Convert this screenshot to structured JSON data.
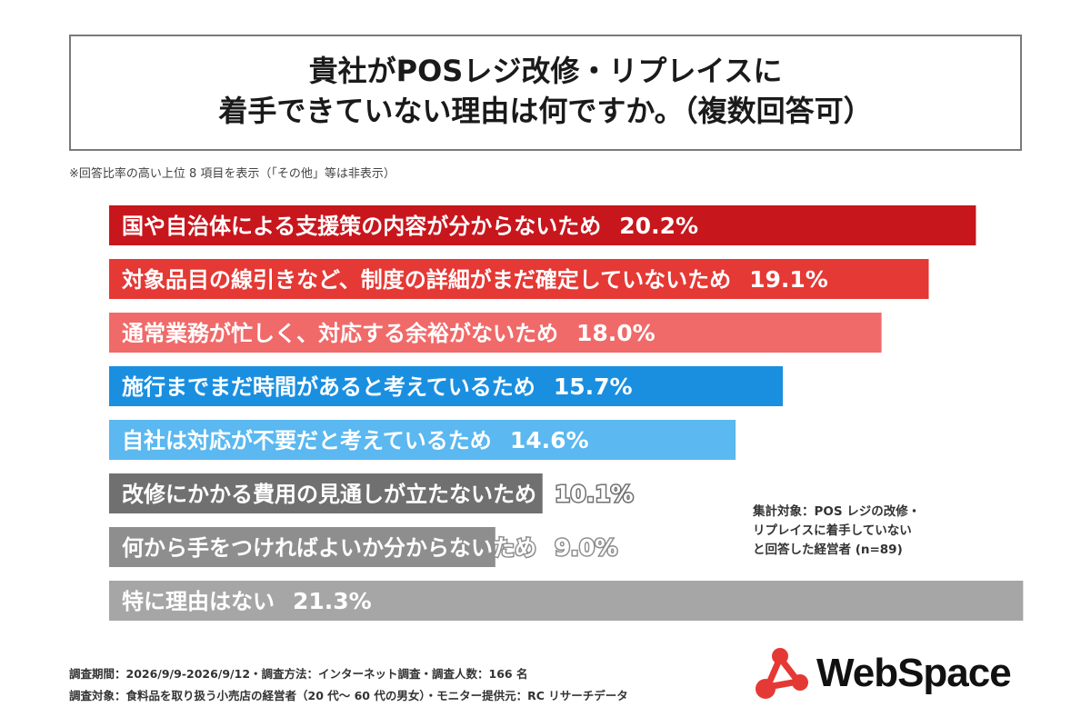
{
  "title": {
    "line1": "貴社がPOSレジ改修・リプレイスに",
    "line2": "着手できていない理由は何ですか。（複数回答可）"
  },
  "note": "※回答比率の高い上位 8 項目を表示（「その他」等は非表示）",
  "sample_note": [
    "集計対象：POS レジの改修・",
    "リプレイスに着手していない",
    "と回答した経営者 (n=89)"
  ],
  "footer": {
    "line1": "調査期間：2026/9/9-2026/9/12・調査方法：インターネット調査・調査人数：166 名",
    "line2": "調査対象：食料品を取り扱う小売店の経営者（20 代～ 60 代の男女）・モニター提供元：RC リサーチデータ"
  },
  "logo": {
    "text": "WebSpace",
    "color": "#e53935"
  },
  "chart_data": {
    "type": "bar",
    "orientation": "horizontal",
    "unit": "%",
    "categories": [
      "国や自治体による支援策の内容が分からないため",
      "対象品目の線引きなど、制度の詳細がまだ確定していないため",
      "通常業務が忙しく、対応する余裕がないため",
      "施行までまだ時間があると考えているため",
      "自社は対応が不要だと考えているため",
      "改修にかかる費用の見通しが立たないため",
      "何から手をつければよいか分からないため",
      "特に理由はない"
    ],
    "values": [
      20.2,
      19.1,
      18.0,
      15.7,
      14.6,
      10.1,
      9.0,
      21.3
    ],
    "value_labels": [
      "20.2%",
      "19.1%",
      "18.0%",
      "15.7%",
      "14.6%",
      "10.1%",
      "9.0%",
      "21.3%"
    ],
    "colors": [
      "#c8161d",
      "#e53935",
      "#f06a6a",
      "#1a8fe0",
      "#5bb8f0",
      "#707070",
      "#8e8e8e",
      "#a6a6a6"
    ]
  }
}
